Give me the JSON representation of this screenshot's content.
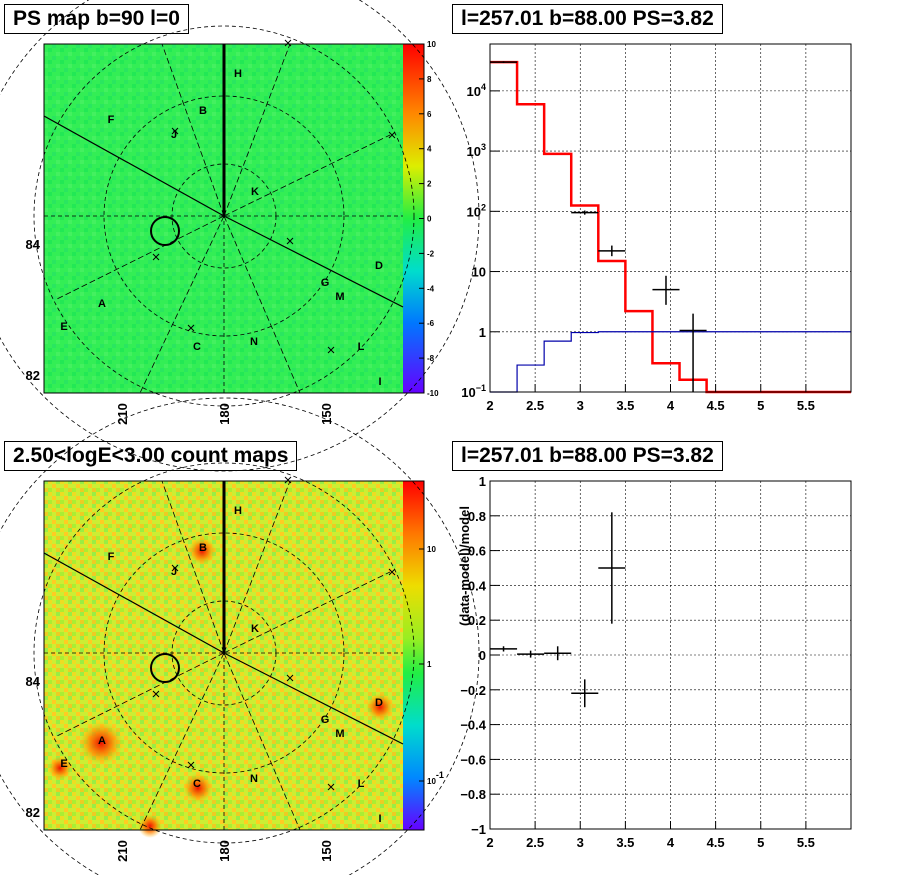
{
  "panels": {
    "tl": {
      "title": "PS map b=90 l=0"
    },
    "tr": {
      "title": "l=257.01 b=88.00 PS=3.82"
    },
    "bl": {
      "title": "2.50<logE<3.00 count maps"
    },
    "br": {
      "title": "l=257.01 b=88.00 PS=3.82"
    }
  },
  "colors": {
    "map_green": "#33ee55",
    "model_red": "#ff0000",
    "model_blue": "#0000aa",
    "data_black": "#000000"
  },
  "chart_data": [
    {
      "type": "heatmap",
      "id": "ps-map",
      "title": "PS map b=90 l=0",
      "x_ticks": [
        "210",
        "180",
        "150"
      ],
      "y_ticks": [
        "84",
        "82"
      ],
      "colorbar": {
        "ticks": [
          "10",
          "8",
          "6",
          "4",
          "2",
          "0",
          "-2",
          "-4",
          "-6",
          "-8",
          "-10"
        ],
        "range": [
          -10,
          10
        ]
      },
      "source_labels": [
        "H",
        "B",
        "F",
        "J",
        "K",
        "D",
        "G",
        "M",
        "A",
        "E",
        "C",
        "N",
        "L",
        "I"
      ]
    },
    {
      "type": "line",
      "id": "ps-hist",
      "title": "l=257.01 b=88.00 PS=3.82",
      "yscale": "log",
      "xlim": [
        2,
        6
      ],
      "ylim": [
        0.1,
        60000
      ],
      "x_ticks": [
        "2",
        "2.5",
        "3",
        "3.5",
        "4",
        "4.5",
        "5",
        "5.5"
      ],
      "y_ticks": [
        {
          "v": 10000,
          "base": "10",
          "exp": "4"
        },
        {
          "v": 1000,
          "base": "10",
          "exp": "3"
        },
        {
          "v": 100,
          "base": "10",
          "exp": "2"
        },
        {
          "v": 10,
          "base": "10",
          "exp": ""
        },
        {
          "v": 1,
          "base": "1",
          "exp": ""
        },
        {
          "v": 0.1,
          "base": "10",
          "exp": "−1"
        }
      ],
      "series": [
        {
          "role": "model_red",
          "bins": [
            [
              2.0,
              2.3,
              30000
            ],
            [
              2.3,
              2.6,
              6000
            ],
            [
              2.6,
              2.9,
              900
            ],
            [
              2.9,
              3.2,
              125
            ],
            [
              3.2,
              3.5,
              15
            ],
            [
              3.5,
              3.8,
              2.2
            ],
            [
              3.8,
              4.1,
              0.3
            ],
            [
              4.1,
              4.4,
              0.16
            ],
            [
              4.4,
              6.0,
              0.1
            ]
          ]
        },
        {
          "role": "model_blue",
          "bins": [
            [
              2.0,
              2.3,
              0.1
            ],
            [
              2.3,
              2.6,
              0.28
            ],
            [
              2.6,
              2.9,
              0.7
            ],
            [
              2.9,
              3.2,
              0.97
            ],
            [
              3.2,
              6.0,
              1.0
            ]
          ]
        },
        {
          "role": "data_black",
          "points": [
            {
              "x": 2.15,
              "xe": 0.15,
              "y": 30000,
              "ylo": 29000,
              "yhi": 31000
            },
            {
              "x": 3.05,
              "xe": 0.15,
              "y": 95,
              "ylo": 88,
              "yhi": 103
            },
            {
              "x": 3.35,
              "xe": 0.15,
              "y": 22,
              "ylo": 18,
              "yhi": 27
            },
            {
              "x": 3.95,
              "xe": 0.15,
              "y": 5,
              "ylo": 2.8,
              "yhi": 8.5
            },
            {
              "x": 4.25,
              "xe": 0.15,
              "y": 1.05,
              "ylo": 0.1,
              "yhi": 2.0
            }
          ]
        }
      ]
    },
    {
      "type": "heatmap",
      "id": "count-map",
      "title": "2.50<logE<3.00 count maps",
      "x_ticks": [
        "210",
        "180",
        "150"
      ],
      "y_ticks": [
        "84",
        "82"
      ],
      "colorbar": {
        "ticks": [
          {
            "base": "10",
            "exp": ""
          },
          {
            "base": "1",
            "exp": ""
          },
          {
            "base": "10",
            "exp": "-1"
          }
        ]
      },
      "source_labels": [
        "H",
        "B",
        "F",
        "J",
        "K",
        "D",
        "G",
        "M",
        "A",
        "E",
        "C",
        "N",
        "L",
        "I"
      ]
    },
    {
      "type": "scatter",
      "id": "residuals",
      "title": "l=257.01 b=88.00 PS=3.82",
      "ylabel": "(data-model)/model",
      "xlim": [
        2,
        6
      ],
      "ylim": [
        -1,
        1
      ],
      "x_ticks": [
        "2",
        "2.5",
        "3",
        "3.5",
        "4",
        "4.5",
        "5",
        "5.5"
      ],
      "y_ticks": [
        "1",
        "0.8",
        "0.6",
        "0.4",
        "0.2",
        "0",
        "−0.2",
        "−0.4",
        "−0.6",
        "−0.8",
        "−1"
      ],
      "points": [
        {
          "x": 2.15,
          "xe": 0.15,
          "y": 0.035,
          "ye": 0.015
        },
        {
          "x": 2.45,
          "xe": 0.15,
          "y": 0.005,
          "ye": 0.02
        },
        {
          "x": 2.75,
          "xe": 0.15,
          "y": 0.01,
          "ye": 0.04
        },
        {
          "x": 3.05,
          "xe": 0.15,
          "y": -0.22,
          "ye": 0.08
        },
        {
          "x": 3.35,
          "xe": 0.15,
          "y": 0.5,
          "ye": 0.32
        }
      ]
    }
  ]
}
